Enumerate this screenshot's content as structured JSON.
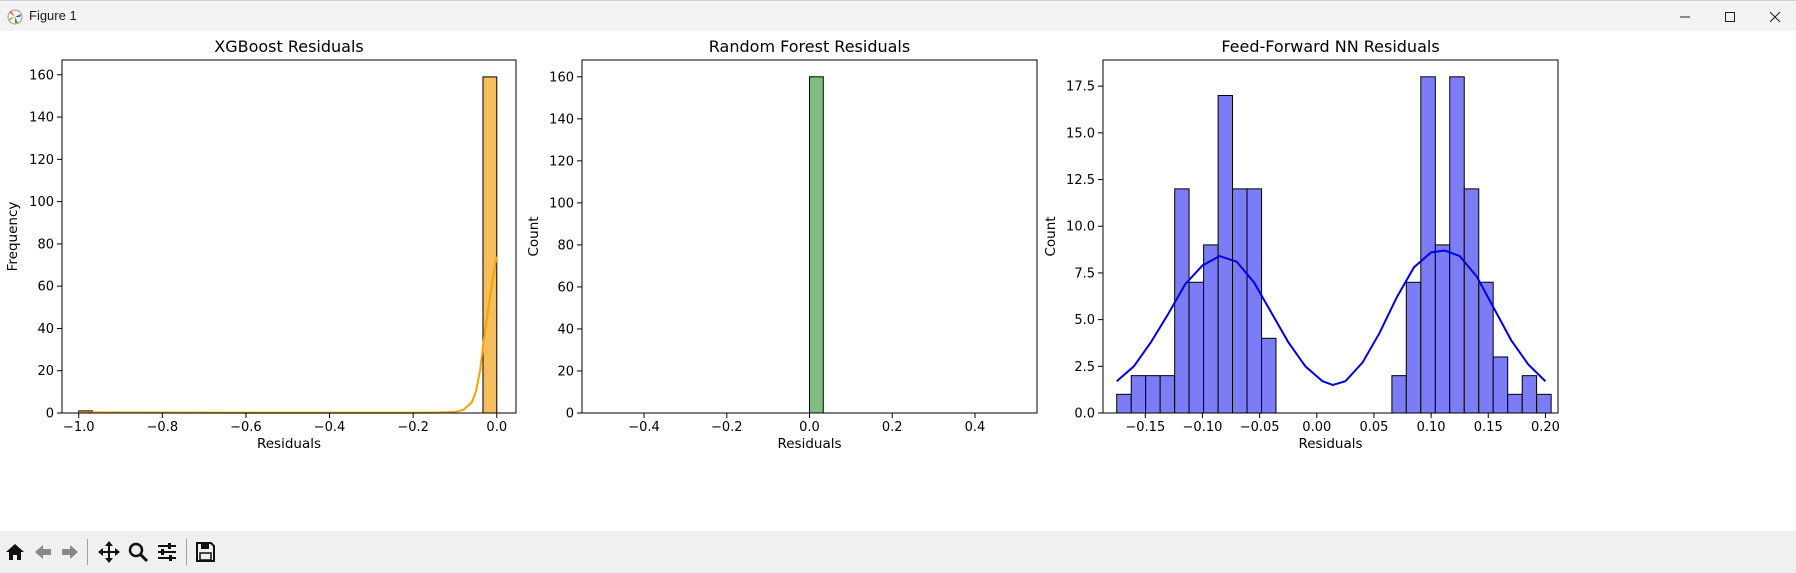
{
  "window": {
    "title": "Figure 1",
    "icons": [
      "matplotlib-logo-icon",
      "minimize-icon",
      "maximize-icon",
      "close-icon"
    ]
  },
  "toolbar": {
    "icons": [
      "home-icon",
      "back-arrow-icon",
      "forward-arrow-icon",
      "pan-move-icon",
      "zoom-magnifier-icon",
      "configure-subplots-icon",
      "save-floppy-icon"
    ]
  },
  "chart_data": [
    {
      "type": "bar",
      "title": "XGBoost Residuals",
      "xlabel": "Residuals",
      "ylabel": "Frequency",
      "xlim": [
        -1.04,
        0.046
      ],
      "ylim": [
        0,
        167
      ],
      "xticks": [
        -1.0,
        -0.8,
        -0.6,
        -0.4,
        -0.2,
        0.0
      ],
      "xtick_labels": [
        "−1.0",
        "−0.8",
        "−0.6",
        "−0.4",
        "−0.2",
        "0.0"
      ],
      "yticks": [
        0,
        20,
        40,
        60,
        80,
        100,
        120,
        140,
        160
      ],
      "ytick_labels": [
        "0",
        "20",
        "40",
        "60",
        "80",
        "100",
        "120",
        "140",
        "160"
      ],
      "bin_edges": [
        -1.0,
        -0.967,
        -0.933,
        -0.9,
        -0.867,
        -0.833,
        -0.8,
        -0.767,
        -0.733,
        -0.7,
        -0.667,
        -0.633,
        -0.6,
        -0.567,
        -0.533,
        -0.5,
        -0.467,
        -0.433,
        -0.4,
        -0.367,
        -0.333,
        -0.3,
        -0.267,
        -0.233,
        -0.2,
        -0.167,
        -0.133,
        -0.1,
        -0.067,
        -0.033,
        0.0
      ],
      "counts": [
        1,
        0,
        0,
        0,
        0,
        0,
        0,
        0,
        0,
        0,
        0,
        0,
        0,
        0,
        0,
        0,
        0,
        0,
        0,
        0,
        0,
        0,
        0,
        0,
        0,
        0,
        0,
        0,
        0,
        159
      ],
      "kde_x": [
        -1.0,
        -0.5,
        -0.2,
        -0.15,
        -0.1,
        -0.08,
        -0.06,
        -0.05,
        -0.04,
        -0.03,
        -0.02,
        -0.01,
        0.0
      ],
      "kde_y": [
        0.3,
        0.1,
        0.1,
        0.2,
        0.5,
        1.5,
        5,
        10,
        20,
        36,
        50,
        63,
        74
      ],
      "colors": {
        "bar": "#f5be5c",
        "edge": "#000000",
        "kde": "#f5a300"
      }
    },
    {
      "type": "bar",
      "title": "Random Forest Residuals",
      "xlabel": "Residuals",
      "ylabel": "Count",
      "xlim": [
        -0.55,
        0.55
      ],
      "ylim": [
        0,
        168
      ],
      "xticks": [
        -0.4,
        -0.2,
        0.0,
        0.2,
        0.4
      ],
      "xtick_labels": [
        "−0.4",
        "−0.2",
        "0.0",
        "0.2",
        "0.4"
      ],
      "yticks": [
        0,
        20,
        40,
        60,
        80,
        100,
        120,
        140,
        160
      ],
      "ytick_labels": [
        "0",
        "20",
        "40",
        "60",
        "80",
        "100",
        "120",
        "140",
        "160"
      ],
      "bin_edges": [
        0.0,
        0.0333
      ],
      "counts": [
        160
      ],
      "colors": {
        "bar": "#80bc7f",
        "edge": "#000000"
      }
    },
    {
      "type": "bar",
      "title": "Feed-Forward NN Residuals",
      "xlabel": "Residuals",
      "ylabel": "Count",
      "xlim": [
        -0.187,
        0.211
      ],
      "ylim": [
        0,
        18.9
      ],
      "xticks": [
        -0.15,
        -0.1,
        -0.05,
        0.0,
        0.05,
        0.1,
        0.15,
        0.2
      ],
      "xtick_labels": [
        "−0.15",
        "−0.10",
        "−0.05",
        "0.00",
        "0.05",
        "0.10",
        "0.15",
        "0.20"
      ],
      "yticks": [
        0,
        2.5,
        5.0,
        7.5,
        10.0,
        12.5,
        15.0,
        17.5
      ],
      "ytick_labels": [
        "0.0",
        "2.5",
        "5.0",
        "7.5",
        "10.0",
        "12.5",
        "15.0",
        "17.5"
      ],
      "bin_edges": [
        -0.175,
        -0.1623,
        -0.1497,
        -0.137,
        -0.1243,
        -0.1117,
        -0.099,
        -0.0863,
        -0.0737,
        -0.061,
        -0.0483,
        -0.0357,
        -0.023,
        -0.0103,
        0.0023,
        0.015,
        0.0277,
        0.0403,
        0.053,
        0.0657,
        0.0783,
        0.091,
        0.1037,
        0.1163,
        0.129,
        0.1417,
        0.1543,
        0.167,
        0.1797,
        0.1923,
        0.205
      ],
      "counts": [
        1,
        2,
        2,
        2,
        12,
        7,
        9,
        17,
        12,
        12,
        4,
        0,
        0,
        0,
        0,
        0,
        0,
        0,
        0,
        2,
        7,
        18,
        9,
        18,
        12,
        7,
        3,
        1,
        2,
        1
      ],
      "kde_x": [
        -0.175,
        -0.16,
        -0.145,
        -0.13,
        -0.115,
        -0.1,
        -0.085,
        -0.07,
        -0.055,
        -0.04,
        -0.025,
        -0.01,
        0.005,
        0.014,
        0.025,
        0.04,
        0.055,
        0.07,
        0.085,
        0.1,
        0.112,
        0.125,
        0.14,
        0.155,
        0.17,
        0.185,
        0.2
      ],
      "kde_y": [
        1.7,
        2.5,
        3.8,
        5.3,
        6.9,
        7.9,
        8.4,
        8.1,
        7.0,
        5.4,
        3.8,
        2.5,
        1.7,
        1.5,
        1.7,
        2.7,
        4.3,
        6.2,
        7.8,
        8.6,
        8.7,
        8.4,
        7.3,
        5.6,
        3.9,
        2.6,
        1.7
      ],
      "colors": {
        "bar": "#7c7cf6",
        "edge": "#000000",
        "kde": "#0000ee"
      }
    }
  ]
}
